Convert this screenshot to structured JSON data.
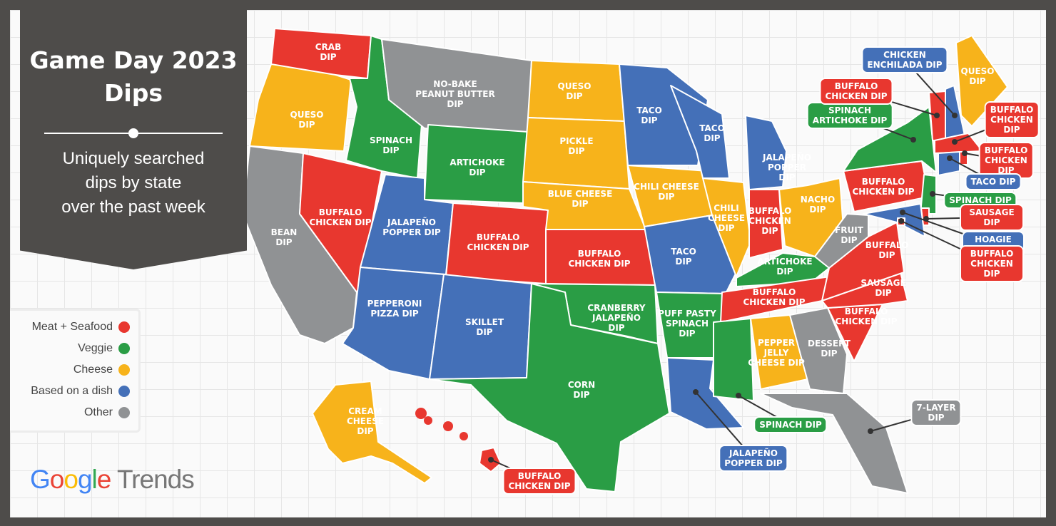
{
  "title": "Game Day 2023\nDips",
  "subtitle": "Uniquely searched\ndips by state\nover the past week",
  "colors": {
    "meat": "#e8372f",
    "veggie": "#2a9d45",
    "cheese": "#f7b31b",
    "dish": "#4470b8",
    "other": "#909294"
  },
  "legend": [
    {
      "label": "Meat + Seafood",
      "cat": "meat"
    },
    {
      "label": "Veggie",
      "cat": "veggie"
    },
    {
      "label": "Cheese",
      "cat": "cheese"
    },
    {
      "label": "Based on a dish",
      "cat": "dish"
    },
    {
      "label": "Other",
      "cat": "other"
    }
  ],
  "logo": {
    "google": "Google",
    "trends": "Trends"
  },
  "states": [
    {
      "code": "WA",
      "dip": "CRAB\nDIP",
      "cat": "meat"
    },
    {
      "code": "OR",
      "dip": "QUESO\nDIP",
      "cat": "cheese"
    },
    {
      "code": "CA",
      "dip": "BEAN\nDIP",
      "cat": "other"
    },
    {
      "code": "NV",
      "dip": "BUFFALO\nCHICKEN DIP",
      "cat": "meat"
    },
    {
      "code": "ID",
      "dip": "SPINACH\nDIP",
      "cat": "veggie"
    },
    {
      "code": "MT",
      "dip": "NO-BAKE\nPEANUT BUTTER\nDIP",
      "cat": "other"
    },
    {
      "code": "WY",
      "dip": "ARTICHOKE\nDIP",
      "cat": "veggie"
    },
    {
      "code": "UT",
      "dip": "JALAPEÑO\nPOPPER DIP",
      "cat": "dish"
    },
    {
      "code": "CO",
      "dip": "BUFFALO\nCHICKEN DIP",
      "cat": "meat"
    },
    {
      "code": "AZ",
      "dip": "PEPPERONI\nPIZZA DIP",
      "cat": "dish"
    },
    {
      "code": "NM",
      "dip": "SKILLET\nDIP",
      "cat": "dish"
    },
    {
      "code": "ND",
      "dip": "QUESO\nDIP",
      "cat": "cheese"
    },
    {
      "code": "SD",
      "dip": "PICKLE\nDIP",
      "cat": "cheese"
    },
    {
      "code": "NE",
      "dip": "BLUE CHEESE\nDIP",
      "cat": "cheese"
    },
    {
      "code": "KS",
      "dip": "BUFFALO\nCHICKEN DIP",
      "cat": "meat"
    },
    {
      "code": "OK",
      "dip": "CRANBERRY\nJALAPEÑO\nDIP",
      "cat": "veggie"
    },
    {
      "code": "TX",
      "dip": "CORN\nDIP",
      "cat": "veggie"
    },
    {
      "code": "MN",
      "dip": "TACO\nDIP",
      "cat": "dish"
    },
    {
      "code": "IA",
      "dip": "CHILI CHEESE\nDIP",
      "cat": "cheese"
    },
    {
      "code": "MO",
      "dip": "TACO\nDIP",
      "cat": "dish"
    },
    {
      "code": "AR",
      "dip": "PUFF PASTY\nSPINACH\nDIP",
      "cat": "veggie"
    },
    {
      "code": "LA",
      "dip": "JALAPEÑO\nPOPPER DIP",
      "cat": "dish"
    },
    {
      "code": "WI",
      "dip": "TACO\nDIP",
      "cat": "dish"
    },
    {
      "code": "IL",
      "dip": "CHILI\nCHEESE\nDIP",
      "cat": "cheese"
    },
    {
      "code": "MI",
      "dip": "JALAPEÑO\nPOPPER\nDIP",
      "cat": "dish"
    },
    {
      "code": "IN",
      "dip": "BUFFALO\nCHICKEN\nDIP",
      "cat": "meat"
    },
    {
      "code": "OH",
      "dip": "NACHO\nDIP",
      "cat": "cheese"
    },
    {
      "code": "KY",
      "dip": "ARTICHOKE\nDIP",
      "cat": "veggie"
    },
    {
      "code": "TN",
      "dip": "BUFFALO\nCHICKEN DIP",
      "cat": "meat"
    },
    {
      "code": "MS",
      "dip": "SPINACH DIP",
      "cat": "veggie"
    },
    {
      "code": "AL",
      "dip": "PEPPER\nJELLY\nCHEESE DIP",
      "cat": "cheese"
    },
    {
      "code": "GA",
      "dip": "DESSERT\nDIP",
      "cat": "other"
    },
    {
      "code": "FL",
      "dip": "7-LAYER\nDIP",
      "cat": "other"
    },
    {
      "code": "SC",
      "dip": "BUFFALO\nCHICKEN DIP",
      "cat": "meat"
    },
    {
      "code": "NC",
      "dip": "SAUSAGE\nDIP",
      "cat": "meat"
    },
    {
      "code": "VA",
      "dip": "BUFFALO\nDIP",
      "cat": "meat"
    },
    {
      "code": "WV",
      "dip": "FRUIT\nDIP",
      "cat": "other"
    },
    {
      "code": "PA",
      "dip": "BUFFALO\nCHICKEN DIP",
      "cat": "meat"
    },
    {
      "code": "NY",
      "dip": "SPINACH\nARTICHOKE DIP",
      "cat": "veggie"
    },
    {
      "code": "NJ",
      "dip": "SPINACH DIP",
      "cat": "veggie"
    },
    {
      "code": "DE",
      "dip": "SAUSAGE DIP",
      "cat": "meat"
    },
    {
      "code": "MD",
      "dip": "HOAGIE DIP",
      "cat": "dish"
    },
    {
      "code": "DC",
      "dip": "BUFFALO CHICKEN DIP",
      "cat": "meat"
    },
    {
      "code": "VT",
      "dip": "BUFFALO\nCHICKEN DIP",
      "cat": "meat"
    },
    {
      "code": "NH",
      "dip": "CHICKEN\nENCHILADA DIP",
      "cat": "dish"
    },
    {
      "code": "ME",
      "dip": "QUESO\nDIP",
      "cat": "cheese"
    },
    {
      "code": "MA",
      "dip": "BUFFALO\nCHICKEN DIP",
      "cat": "meat"
    },
    {
      "code": "RI",
      "dip": "BUFFALO\nCHICKEN DIP",
      "cat": "meat"
    },
    {
      "code": "CT",
      "dip": "TACO DIP",
      "cat": "dish"
    },
    {
      "code": "AK",
      "dip": "CREAM\nCHEESE\nDIP",
      "cat": "cheese"
    },
    {
      "code": "HI",
      "dip": "BUFFALO\nCHICKEN DIP",
      "cat": "meat"
    }
  ]
}
